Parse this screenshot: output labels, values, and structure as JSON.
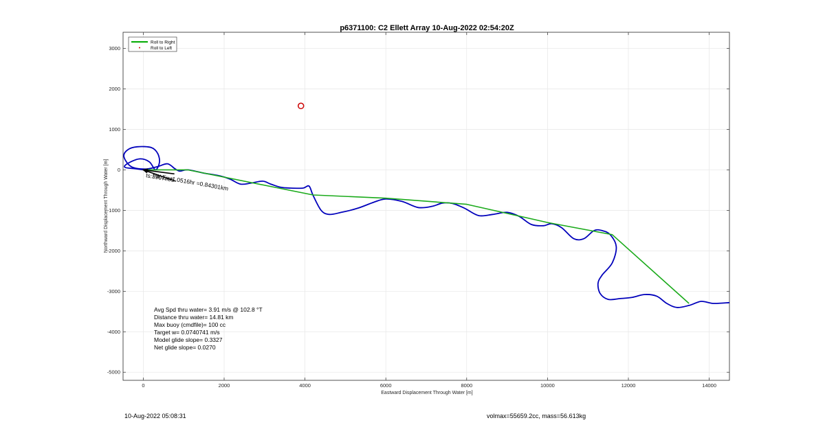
{
  "chart_data": {
    "type": "line",
    "title": "p6371100: C2 Ellett Array 10-Aug-2022 02:54:20Z",
    "xlabel": "Eastward Displacement Through Water [m]",
    "ylabel": "Northward Displacement Through Water [m]",
    "xlim": [
      -500,
      14500
    ],
    "ylim": [
      -5200,
      3400
    ],
    "xticks": [
      0,
      2000,
      4000,
      6000,
      8000,
      10000,
      12000,
      14000
    ],
    "yticks": [
      -5000,
      -4000,
      -3000,
      -2000,
      -1000,
      0,
      1000,
      2000,
      3000
    ],
    "grid": true,
    "legend": {
      "position": "top-left",
      "entries": [
        {
          "label": "Roll to Right",
          "color": "#00aa00",
          "style": "line"
        },
        {
          "label": "Roll to Left",
          "color": "#cc0000",
          "style": "dot"
        }
      ]
    },
    "series": [
      {
        "name": "Roll to Right",
        "color": "#1aaa1a",
        "x": [
          0,
          850,
          1100,
          4200,
          6000,
          8000,
          10000,
          11600,
          13500
        ],
        "y": [
          0,
          0,
          0,
          -620,
          -700,
          -850,
          -1300,
          -1600,
          -3300
        ]
      },
      {
        "color": "#0000bb",
        "x": [
          0,
          -200,
          -450,
          -400,
          -100,
          150,
          300,
          400,
          360,
          200,
          -150,
          -380,
          -480,
          -300,
          50,
          350,
          600,
          780,
          900,
          1100,
          1500,
          1900,
          2150,
          2400,
          2650,
          2950,
          3150,
          3400,
          3650,
          3950,
          4100,
          4200,
          4400,
          4600,
          4900,
          5300,
          5700,
          6000,
          6400,
          6800,
          7150,
          7400,
          7650,
          7950,
          8300,
          8650,
          9000,
          9300,
          9600,
          9900,
          10100,
          10350,
          10650,
          10900,
          11150,
          11350,
          11550,
          11700,
          11600,
          11350,
          11250,
          11300,
          11500,
          11800,
          12100,
          12400,
          12700,
          12950,
          13200,
          13500,
          13800,
          14100,
          14500
        ],
        "y": [
          0,
          30,
          60,
          150,
          270,
          200,
          0,
          180,
          400,
          550,
          570,
          500,
          330,
          80,
          20,
          80,
          150,
          30,
          -30,
          0,
          -80,
          -150,
          -230,
          -350,
          -330,
          -280,
          -350,
          -430,
          -450,
          -450,
          -400,
          -630,
          -1000,
          -1100,
          -1050,
          -950,
          -800,
          -720,
          -780,
          -930,
          -900,
          -820,
          -830,
          -950,
          -1130,
          -1100,
          -1050,
          -1150,
          -1350,
          -1380,
          -1330,
          -1430,
          -1700,
          -1700,
          -1500,
          -1500,
          -1600,
          -1900,
          -2300,
          -2600,
          -2800,
          -3050,
          -3200,
          -3180,
          -3150,
          -3080,
          -3120,
          -3300,
          -3400,
          -3350,
          -3250,
          -3300,
          -3280
        ]
      }
    ],
    "markers": [
      {
        "shape": "circle",
        "x": 3900,
        "y": 1580,
        "color": "#cc0000"
      }
    ],
    "arrows": [
      {
        "x": [
          0,
          770
        ],
        "y": [
          0,
          -100
        ]
      },
      {
        "x": [
          0,
          800
        ],
        "y": [
          0,
          -280
        ]
      }
    ],
    "arrow_labels": [
      {
        "text": "ts:3997m/s",
        "x": 60,
        "y": -180
      },
      {
        "text": "TW Env1.0516hr =0.84301km",
        "x": 200,
        "y": -180
      }
    ],
    "annotations": [
      "Avg Spd thru water=  3.91 m/s @ 102.8 °T",
      "Distance thru water= 14.81 km",
      "Max buoy (cmdfile)= 100 cc",
      "Target w= 0.0740741 m/s",
      "Model glide slope= 0.3327",
      "Net glide slope= 0.0270"
    ]
  },
  "footer": {
    "left": "10-Aug-2022 05:08:31",
    "right": "volmax=55659.2cc, mass=56.613kg"
  }
}
